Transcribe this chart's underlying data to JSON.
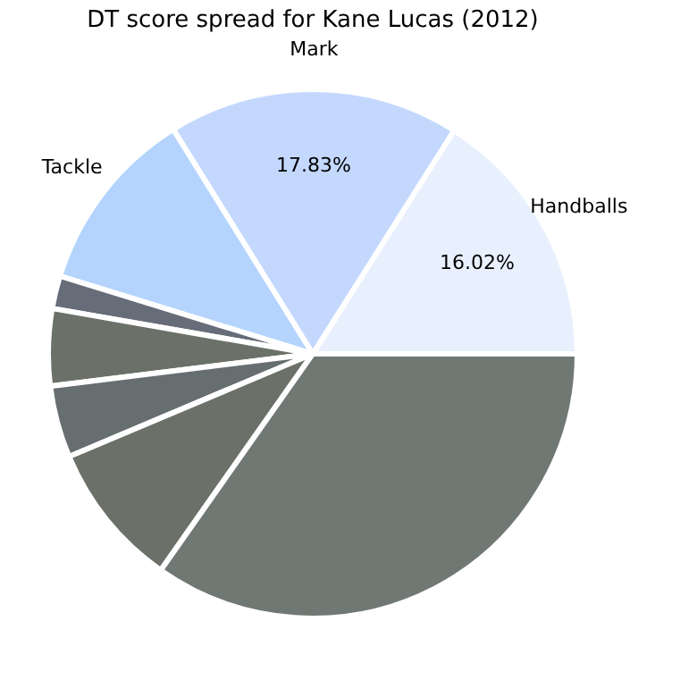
{
  "chart_data": {
    "type": "pie",
    "title": "DT score spread for Kane Lucas (2012)",
    "categories": [
      "Handballs",
      "Mark",
      "Tackle",
      null,
      null,
      null,
      null,
      null
    ],
    "values": [
      16.02,
      17.83,
      11.4,
      2.0,
      4.7,
      4.4,
      8.9,
      34.75
    ],
    "value_labels": [
      "16.02%",
      "17.83%",
      null,
      null,
      null,
      null,
      null,
      null
    ],
    "colors": [
      "#e8f0fe",
      "#c4d8fe",
      "#b4d4fe",
      "#666c78",
      "#6b7168",
      "#666e70",
      "#6b7068",
      "#707874"
    ],
    "legend": false
  }
}
